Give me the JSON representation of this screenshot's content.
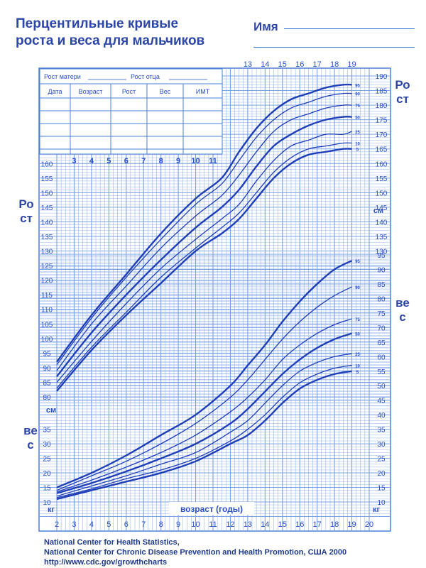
{
  "header": {
    "title_line1": "Перцентильные кривые",
    "title_line2": "роста и веса для мальчиков",
    "name_label": "Имя"
  },
  "side_labels": {
    "height_right": "Рост",
    "height_left": "Рост",
    "weight_right": "вес",
    "weight_left": "вес"
  },
  "table": {
    "mother_height": "Рост матери",
    "father_height": "Рост отца",
    "columns": [
      "Дата",
      "Возраст",
      "Рост",
      "Вес",
      "ИМТ"
    ]
  },
  "footer": {
    "line1": "National Center for Health Statistics,",
    "line2": "National Center for Chronic Disease Prevention and Health Promotion,  США 2000",
    "line3": "http://www.cdc.gov/growthcharts"
  },
  "chart_data": {
    "type": "line",
    "xlabel": "возраст (годы)",
    "x_ticks": [
      2,
      3,
      4,
      5,
      6,
      7,
      8,
      9,
      10,
      11,
      12,
      13,
      14,
      15,
      16,
      17,
      18,
      19,
      20
    ],
    "x_ticks_upper": [
      3,
      4,
      5,
      6,
      7,
      8,
      9,
      10,
      11
    ],
    "x_ticks_top": [
      13,
      14,
      15,
      16,
      17,
      18,
      19
    ],
    "xlim": [
      2,
      20
    ],
    "height_axis": {
      "unit": "см",
      "ticks_left": [
        80,
        85,
        90,
        95,
        100,
        105,
        110,
        115,
        120,
        125,
        130,
        135,
        140,
        145,
        150,
        155,
        160
      ],
      "ticks_right": [
        130,
        135,
        140,
        145,
        150,
        155,
        160,
        165,
        170,
        175,
        180,
        185,
        190
      ],
      "ylim": [
        77,
        190
      ]
    },
    "weight_axis": {
      "unit": "кг",
      "ticks_left": [
        10,
        15,
        20,
        25,
        30,
        35
      ],
      "ticks_right": [
        10,
        15,
        20,
        25,
        30,
        35,
        40,
        45,
        50,
        55,
        60,
        65,
        70,
        75,
        80,
        85,
        90,
        95
      ],
      "ylim": [
        8,
        95
      ]
    },
    "height_percentiles": [
      {
        "name": "5",
        "x": [
          2,
          4,
          6,
          8,
          10,
          11.5,
          12.5,
          13.5,
          14.5,
          15.5,
          16.5,
          17.5,
          18.5,
          19
        ],
        "values": [
          82,
          96,
          108,
          119,
          130,
          136,
          141,
          148,
          155,
          160,
          163,
          164,
          165,
          165
        ]
      },
      {
        "name": "10",
        "x": [
          2,
          4,
          6,
          8,
          10,
          11.5,
          12.5,
          13.5,
          14.5,
          15.5,
          16.5,
          17.5,
          18.5,
          19
        ],
        "values": [
          83,
          97,
          109,
          121,
          131,
          138,
          143,
          150,
          157,
          162,
          165,
          166,
          167,
          167
        ]
      },
      {
        "name": "25",
        "x": [
          2,
          4,
          6,
          8,
          10,
          11.5,
          12.5,
          13.5,
          14.5,
          15.5,
          16.5,
          17.5,
          18.5,
          19
        ],
        "values": [
          85,
          99,
          112,
          124,
          134,
          141,
          146,
          154,
          161,
          166,
          168,
          170,
          170,
          171
        ]
      },
      {
        "name": "50",
        "x": [
          2,
          4,
          6,
          8,
          10,
          11.5,
          12.5,
          13.5,
          14.5,
          15.5,
          16.5,
          17.5,
          18.5,
          19
        ],
        "values": [
          87,
          102,
          115,
          127,
          138,
          145,
          151,
          159,
          166,
          170,
          173,
          175,
          176,
          176
        ]
      },
      {
        "name": "75",
        "x": [
          2,
          4,
          6,
          8,
          10,
          11.5,
          12.5,
          13.5,
          14.5,
          15.5,
          16.5,
          17.5,
          18.5,
          19
        ],
        "values": [
          89,
          105,
          118,
          131,
          142,
          149,
          156,
          164,
          171,
          175,
          177,
          179,
          180,
          180
        ]
      },
      {
        "name": "90",
        "x": [
          2,
          4,
          6,
          8,
          10,
          11.5,
          12.5,
          13.5,
          14.5,
          15.5,
          16.5,
          17.5,
          18.5,
          19
        ],
        "values": [
          91,
          107,
          121,
          134,
          146,
          153,
          161,
          169,
          175,
          179,
          181,
          183,
          184,
          184
        ]
      },
      {
        "name": "95",
        "x": [
          2,
          4,
          6,
          8,
          10,
          11.5,
          12.5,
          13.5,
          14.5,
          15.5,
          16.5,
          17.5,
          18.5,
          19
        ],
        "values": [
          92,
          108,
          122,
          136,
          148,
          155,
          164,
          172,
          178,
          182,
          184,
          186,
          187,
          187
        ]
      }
    ],
    "weight_percentiles": [
      {
        "name": "5",
        "x": [
          2,
          4,
          6,
          8,
          10,
          12,
          13,
          14,
          15,
          16,
          17,
          18,
          19
        ],
        "values": [
          11,
          14,
          17,
          20,
          24,
          30,
          33,
          38,
          44,
          49,
          52,
          54,
          55
        ]
      },
      {
        "name": "10",
        "x": [
          2,
          4,
          6,
          8,
          10,
          12,
          13,
          14,
          15,
          16,
          17,
          18,
          19
        ],
        "values": [
          11.5,
          14.5,
          18,
          21,
          25,
          31,
          35,
          40,
          46,
          51,
          54,
          56,
          57
        ]
      },
      {
        "name": "25",
        "x": [
          2,
          4,
          6,
          8,
          10,
          12,
          13,
          14,
          15,
          16,
          17,
          18,
          19
        ],
        "values": [
          12,
          15.5,
          19,
          23,
          27,
          34,
          38,
          44,
          50,
          55,
          58,
          60,
          61
        ]
      },
      {
        "name": "50",
        "x": [
          2,
          4,
          6,
          8,
          10,
          12,
          13,
          14,
          15,
          16,
          17,
          18,
          19
        ],
        "values": [
          13,
          16.5,
          20.5,
          25,
          30,
          37,
          42,
          48,
          54,
          59,
          63,
          66,
          68
        ]
      },
      {
        "name": "75",
        "x": [
          2,
          4,
          6,
          8,
          10,
          12,
          13,
          14,
          15,
          16,
          17,
          18,
          19
        ],
        "values": [
          13.5,
          17.5,
          22,
          27,
          33,
          41,
          46,
          52,
          59,
          64,
          68,
          71,
          73
        ]
      },
      {
        "name": "90",
        "x": [
          2,
          4,
          6,
          8,
          10,
          12,
          13,
          14,
          15,
          16,
          17,
          18,
          19
        ],
        "values": [
          14,
          19,
          24,
          30,
          37,
          46,
          52,
          59,
          66,
          72,
          77,
          81,
          84
        ]
      },
      {
        "name": "95",
        "x": [
          2,
          4,
          6,
          8,
          10,
          12,
          13,
          14,
          15,
          16,
          17,
          18,
          19
        ],
        "values": [
          15,
          20,
          26,
          33,
          40,
          50,
          57,
          64,
          72,
          79,
          85,
          90,
          93
        ]
      }
    ]
  }
}
